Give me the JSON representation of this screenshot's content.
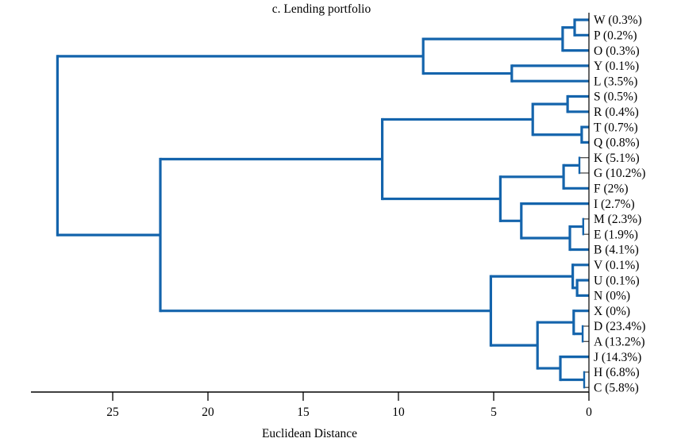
{
  "title": "c. Lending portfolio",
  "chart_data": {
    "type": "dendrogram",
    "title": "c. Lending portfolio",
    "xlabel": "Euclidean Distance",
    "orientation": "left",
    "axis_reversed": true,
    "x_ticks": [
      25,
      20,
      15,
      10,
      5,
      0
    ],
    "x_range": [
      0,
      29.3
    ],
    "grid": false,
    "line_color": "#1464ac",
    "thin_stub_color": "#3c3c3c",
    "axis_color": "#000000",
    "leaves": [
      {
        "id": "W",
        "label": "W (0.3%)"
      },
      {
        "id": "P",
        "label": "P (0.2%)"
      },
      {
        "id": "O",
        "label": "O (0.3%)"
      },
      {
        "id": "Y",
        "label": "Y (0.1%)"
      },
      {
        "id": "L",
        "label": "L (3.5%)"
      },
      {
        "id": "S",
        "label": "S (0.5%)"
      },
      {
        "id": "R",
        "label": "R (0.4%)"
      },
      {
        "id": "T",
        "label": "T (0.7%)"
      },
      {
        "id": "Q",
        "label": "Q (0.8%)"
      },
      {
        "id": "K",
        "label": "K (5.1%)"
      },
      {
        "id": "G",
        "label": "G (10.2%)"
      },
      {
        "id": "F",
        "label": "F (2%)"
      },
      {
        "id": "I",
        "label": "I (2.7%)"
      },
      {
        "id": "M",
        "label": "M (2.3%)"
      },
      {
        "id": "E",
        "label": "E (1.9%)"
      },
      {
        "id": "B",
        "label": "B (4.1%)"
      },
      {
        "id": "V",
        "label": "V (0.1%)"
      },
      {
        "id": "U",
        "label": "U (0.1%)"
      },
      {
        "id": "N",
        "label": "N (0%)"
      },
      {
        "id": "X",
        "label": "X (0%)"
      },
      {
        "id": "D",
        "label": "D (23.4%)"
      },
      {
        "id": "A",
        "label": "A (13.2%)"
      },
      {
        "id": "J",
        "label": "J (14.3%)"
      },
      {
        "id": "H",
        "label": "H (6.8%)"
      },
      {
        "id": "C",
        "label": "C (5.8%)"
      }
    ],
    "merges": [
      {
        "id": "m1",
        "a": "W",
        "b": "P",
        "d": 0.75
      },
      {
        "id": "m2",
        "a": "m1",
        "b": "O",
        "d": 1.38
      },
      {
        "id": "m3",
        "a": "Y",
        "b": "L",
        "d": 4.05
      },
      {
        "id": "m4",
        "a": "m2",
        "b": "m3",
        "d": 8.7
      },
      {
        "id": "m5",
        "a": "S",
        "b": "R",
        "d": 1.12
      },
      {
        "id": "m6",
        "a": "T",
        "b": "Q",
        "d": 0.38
      },
      {
        "id": "m7",
        "a": "m5",
        "b": "m6",
        "d": 2.95
      },
      {
        "id": "m8",
        "a": "K",
        "b": "G",
        "d": 0.5,
        "thin_stubs": true
      },
      {
        "id": "m9",
        "a": "m8",
        "b": "F",
        "d": 1.33
      },
      {
        "id": "m10",
        "a": "M",
        "b": "E",
        "d": 0.3,
        "thin_stubs": true
      },
      {
        "id": "m11",
        "a": "m10",
        "b": "B",
        "d": 1.0
      },
      {
        "id": "m12",
        "a": "I",
        "b": "m11",
        "d": 3.55
      },
      {
        "id": "m13",
        "a": "m9",
        "b": "m12",
        "d": 4.65
      },
      {
        "id": "m14",
        "a": "m7",
        "b": "m13",
        "d": 10.85
      },
      {
        "id": "m15",
        "a": "U",
        "b": "N",
        "d": 0.62
      },
      {
        "id": "m16",
        "a": "V",
        "b": "m15",
        "d": 0.85
      },
      {
        "id": "m17",
        "a": "D",
        "b": "A",
        "d": 0.33,
        "thin_stubs": true
      },
      {
        "id": "m18",
        "a": "X",
        "b": "m17",
        "d": 0.8
      },
      {
        "id": "m19",
        "a": "H",
        "b": "C",
        "d": 0.25,
        "thin_stubs": true
      },
      {
        "id": "m20",
        "a": "J",
        "b": "m19",
        "d": 1.5
      },
      {
        "id": "m21",
        "a": "m18",
        "b": "m20",
        "d": 2.7
      },
      {
        "id": "m22",
        "a": "m16",
        "b": "m21",
        "d": 5.15
      },
      {
        "id": "m23",
        "a": "m14",
        "b": "m22",
        "d": 22.5
      },
      {
        "id": "m24",
        "a": "m4",
        "b": "m23",
        "d": 27.9
      }
    ]
  }
}
